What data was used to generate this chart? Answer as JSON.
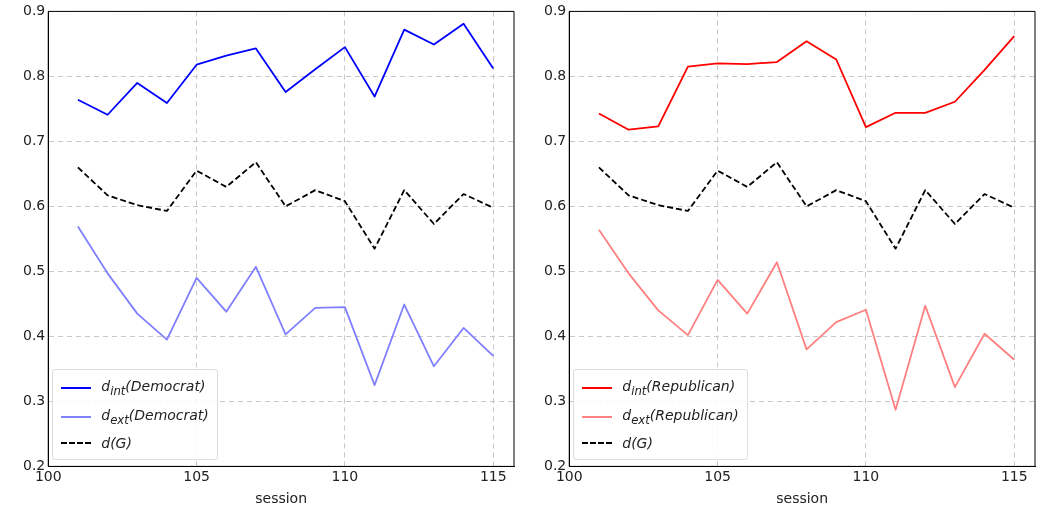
{
  "chart_data": [
    {
      "type": "line",
      "xlabel": "session",
      "x": [
        101,
        102,
        103,
        104,
        105,
        106,
        107,
        108,
        109,
        110,
        111,
        112,
        113,
        114,
        115
      ],
      "xlim": [
        100,
        115.7
      ],
      "xticks": [
        100,
        105,
        110,
        115
      ],
      "ylim": [
        0.2,
        0.9
      ],
      "yticks": [
        0.2,
        0.3,
        0.4,
        0.5,
        0.6,
        0.7,
        0.8,
        0.9
      ],
      "grid": true,
      "legend": "bottom left",
      "marker": "none",
      "series": [
        {
          "name": "d$_{int}$(Democrat)",
          "color": "#0000ff",
          "line_style": "solid",
          "values": [
            0.764,
            0.741,
            0.79,
            0.759,
            0.818,
            0.832,
            0.843,
            0.776,
            0.811,
            0.845,
            0.769,
            0.872,
            0.849,
            0.881,
            0.812
          ]
        },
        {
          "name": "d$_{ext}$(Democrat)",
          "color": "#8080ff",
          "line_style": "solid",
          "values": [
            0.569,
            0.497,
            0.435,
            0.395,
            0.49,
            0.438,
            0.507,
            0.403,
            0.444,
            0.445,
            0.325,
            0.449,
            0.354,
            0.413,
            0.37
          ]
        },
        {
          "name": "d(G)",
          "color": "#000000",
          "line_style": "dashed",
          "values": [
            0.66,
            0.617,
            0.602,
            0.593,
            0.655,
            0.63,
            0.668,
            0.6,
            0.625,
            0.608,
            0.535,
            0.625,
            0.573,
            0.619,
            0.598
          ]
        }
      ]
    },
    {
      "type": "line",
      "xlabel": "session",
      "x": [
        101,
        102,
        103,
        104,
        105,
        106,
        107,
        108,
        109,
        110,
        111,
        112,
        113,
        114,
        115
      ],
      "xlim": [
        100,
        115.7
      ],
      "xticks": [
        100,
        105,
        110,
        115
      ],
      "ylim": [
        0.2,
        0.9
      ],
      "yticks": [
        0.2,
        0.3,
        0.4,
        0.5,
        0.6,
        0.7,
        0.8,
        0.9
      ],
      "grid": true,
      "legend": "bottom left",
      "marker": "none",
      "series": [
        {
          "name": "d$_{int}$(Republican)",
          "color": "#ff0000",
          "line_style": "solid",
          "values": [
            0.743,
            0.718,
            0.723,
            0.815,
            0.82,
            0.819,
            0.822,
            0.854,
            0.826,
            0.722,
            0.744,
            0.744,
            0.761,
            0.81,
            0.862
          ]
        },
        {
          "name": "d$_{ext}$(Republican)",
          "color": "#ff8080",
          "line_style": "solid",
          "values": [
            0.564,
            0.497,
            0.44,
            0.402,
            0.487,
            0.435,
            0.514,
            0.38,
            0.422,
            0.441,
            0.287,
            0.447,
            0.322,
            0.404,
            0.364
          ]
        },
        {
          "name": "d(G)",
          "color": "#000000",
          "line_style": "dashed",
          "values": [
            0.66,
            0.617,
            0.602,
            0.593,
            0.655,
            0.63,
            0.668,
            0.6,
            0.625,
            0.608,
            0.535,
            0.625,
            0.573,
            0.619,
            0.598
          ]
        }
      ]
    }
  ]
}
